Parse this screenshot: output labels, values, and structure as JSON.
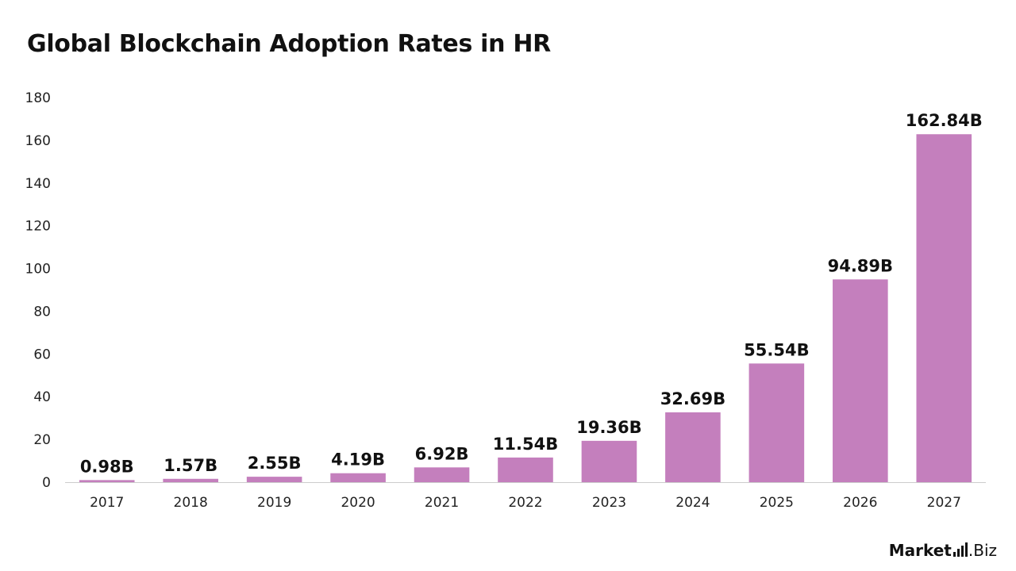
{
  "title": "Global Blockchain Adoption Rates in HR",
  "brand": {
    "name_bold": "Market",
    "name_suffix": ".Biz",
    "icon": "bars-icon"
  },
  "colors": {
    "bar": "#c47fbd",
    "axis": "#cccccc",
    "text": "#111111"
  },
  "chart_data": {
    "type": "bar",
    "title": "Global Blockchain Adoption Rates in HR",
    "xlabel": "",
    "ylabel": "",
    "categories": [
      "2017",
      "2018",
      "2019",
      "2020",
      "2021",
      "2022",
      "2023",
      "2024",
      "2025",
      "2026",
      "2027"
    ],
    "values": [
      0.98,
      1.57,
      2.55,
      4.19,
      6.92,
      11.54,
      19.36,
      32.69,
      55.54,
      94.89,
      162.84
    ],
    "data_labels": [
      "0.98B",
      "1.57B",
      "2.55B",
      "4.19B",
      "6.92B",
      "11.54B",
      "19.36B",
      "32.69B",
      "55.54B",
      "94.89B",
      "162.84B"
    ],
    "ylim": [
      0,
      180
    ],
    "yticks": [
      "0",
      "20",
      "40",
      "60",
      "80",
      "100",
      "120",
      "140",
      "160",
      "180"
    ],
    "grid": false,
    "legend": "none"
  }
}
